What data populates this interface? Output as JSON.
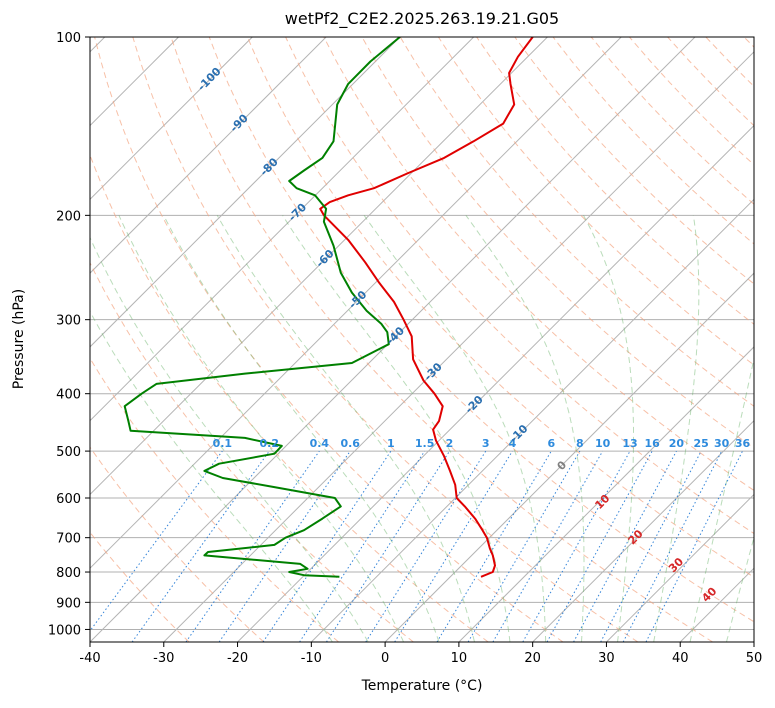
{
  "chart_data": {
    "type": "skew-t",
    "title": "wetPf2_C2E2.2025.263.19.21.G05",
    "xlabel": "Temperature (°C)",
    "ylabel": "Pressure (hPa)",
    "xlim": [
      -40,
      50
    ],
    "ylim": [
      1050,
      100
    ],
    "x_ticks": [
      -40,
      -30,
      -20,
      -10,
      0,
      10,
      20,
      30,
      40,
      50
    ],
    "y_ticks": [
      100,
      200,
      300,
      400,
      500,
      600,
      700,
      800,
      900,
      1000
    ],
    "dry_adiabat_labels": [
      "-100",
      "-90",
      "-80",
      "-70",
      "-60",
      "-50",
      "-40",
      "-30",
      "-20",
      "-10"
    ],
    "moist_adiabat_labels": [
      "0",
      "10",
      "20",
      "30",
      "40"
    ],
    "mixing_ratio_labels": [
      "0.1",
      "0.2",
      "0.4",
      "0.6",
      "1",
      "1.5",
      "2",
      "3",
      "4",
      "6",
      "8",
      "10",
      "13",
      "16",
      "20",
      "25",
      "30",
      "36"
    ],
    "series": [
      {
        "name": "temperature",
        "color": "#e00000",
        "points": [
          [
            815,
            13.0
          ],
          [
            800,
            14.6
          ],
          [
            780,
            14.9
          ],
          [
            750,
            14.6
          ],
          [
            730,
            14.2
          ],
          [
            700,
            13.8
          ],
          [
            680,
            13.2
          ],
          [
            650,
            12.2
          ],
          [
            620,
            10.8
          ],
          [
            600,
            9.7
          ],
          [
            570,
            9.5
          ],
          [
            540,
            8.8
          ],
          [
            510,
            8.0
          ],
          [
            480,
            6.9
          ],
          [
            460,
            6.5
          ],
          [
            445,
            7.3
          ],
          [
            420,
            7.8
          ],
          [
            400,
            6.7
          ],
          [
            380,
            5.2
          ],
          [
            350,
            3.8
          ],
          [
            320,
            3.6
          ],
          [
            300,
            2.5
          ],
          [
            280,
            1.2
          ],
          [
            260,
            -0.8
          ],
          [
            240,
            -2.7
          ],
          [
            220,
            -5.0
          ],
          [
            200,
            -8.3
          ],
          [
            195,
            -8.8
          ],
          [
            190,
            -7.5
          ],
          [
            185,
            -5.0
          ],
          [
            180,
            -1.5
          ],
          [
            170,
            3.0
          ],
          [
            160,
            8.0
          ],
          [
            150,
            12.0
          ],
          [
            140,
            16.0
          ],
          [
            130,
            17.5
          ],
          [
            120,
            17.0
          ],
          [
            115,
            16.8
          ],
          [
            108,
            18.0
          ],
          [
            100,
            20.0
          ]
        ]
      },
      {
        "name": "dewpoint",
        "color": "#008000",
        "points": [
          [
            815,
            -6.2
          ],
          [
            810,
            -11.0
          ],
          [
            800,
            -13.0
          ],
          [
            790,
            -10.5
          ],
          [
            775,
            -11.5
          ],
          [
            750,
            -24.5
          ],
          [
            740,
            -24.0
          ],
          [
            720,
            -15.0
          ],
          [
            700,
            -13.5
          ],
          [
            680,
            -11.0
          ],
          [
            650,
            -8.5
          ],
          [
            620,
            -6.0
          ],
          [
            600,
            -6.8
          ],
          [
            575,
            -15.0
          ],
          [
            555,
            -22.0
          ],
          [
            540,
            -24.5
          ],
          [
            525,
            -22.5
          ],
          [
            505,
            -15.0
          ],
          [
            490,
            -14.0
          ],
          [
            475,
            -19.0
          ],
          [
            462,
            -34.5
          ],
          [
            445,
            -34.8
          ],
          [
            420,
            -35.3
          ],
          [
            400,
            -33.0
          ],
          [
            385,
            -31.0
          ],
          [
            370,
            -19.0
          ],
          [
            355,
            -4.5
          ],
          [
            330,
            0.5
          ],
          [
            315,
            0.3
          ],
          [
            305,
            -0.5
          ],
          [
            290,
            -2.5
          ],
          [
            270,
            -4.5
          ],
          [
            250,
            -6.0
          ],
          [
            225,
            -7.0
          ],
          [
            205,
            -8.3
          ],
          [
            195,
            -8.0
          ],
          [
            185,
            -9.5
          ],
          [
            180,
            -12.0
          ],
          [
            175,
            -13.0
          ],
          [
            168,
            -11.0
          ],
          [
            160,
            -8.5
          ],
          [
            150,
            -7.0
          ],
          [
            130,
            -6.5
          ],
          [
            120,
            -5.0
          ],
          [
            110,
            -2.0
          ],
          [
            100,
            2.0
          ]
        ]
      }
    ]
  }
}
